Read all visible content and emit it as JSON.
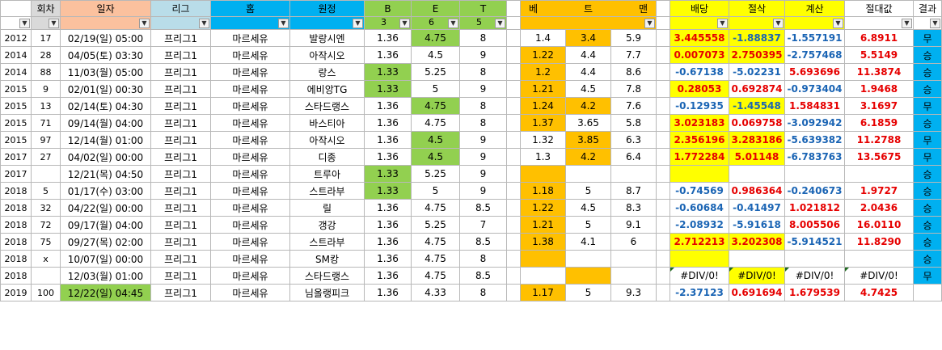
{
  "colors": {
    "orange_header": "#fbc19e",
    "light_blue_header": "#b9dde9",
    "cyan_header": "#00b0f0",
    "green": "#92d050",
    "orange": "#ffc000",
    "yellow": "#ffff00",
    "result_blue": "#00b0f0",
    "result_green": "#92d050",
    "grey_header": "#d9d9d9"
  },
  "header": {
    "c1": "회차",
    "c2": "일자",
    "c3": "리그",
    "c4": "홈",
    "c5": "원정",
    "c6_top": "B",
    "c6_bot": "3",
    "c7_top": "E",
    "c7_bot": "6",
    "c8_top": "T",
    "c8_bot": "5",
    "c10_a": "베",
    "c10_b": "트",
    "c10_c": "맨",
    "c12": "배당",
    "c13": "절삭",
    "c14": "계산",
    "c15": "절대값",
    "c16": "결과",
    "filter_icon": "▼",
    "filter_active_icon": "▼⏷"
  },
  "rows": [
    {
      "yr": "2012",
      "n": "17",
      "date": "02/19(일) 05:00",
      "lg": "프리그1",
      "home": "마르세유",
      "away": "발랑시엔",
      "b": "1.36",
      "e": "4.75",
      "t": "8",
      "m1": "1.4",
      "m2": "3.4",
      "m3": "5.9",
      "v1": "3.445558",
      "v2": "-1.88837",
      "v3": "-1.557191",
      "v4": "6.8911",
      "res": "무"
    },
    {
      "yr": "2014",
      "n": "28",
      "date": "04/05(토) 03:30",
      "lg": "프리그1",
      "home": "마르세유",
      "away": "아작시오",
      "b": "1.36",
      "e": "4.5",
      "t": "9",
      "m1": "1.22",
      "m2": "4.4",
      "m3": "7.7",
      "v1": "0.007073",
      "v2": "2.750395",
      "v3": "-2.757468",
      "v4": "5.5149",
      "res": "승"
    },
    {
      "yr": "2014",
      "n": "88",
      "date": "11/03(월) 05:00",
      "lg": "프리그1",
      "home": "마르세유",
      "away": "랑스",
      "b": "1.33",
      "e": "5.25",
      "t": "8",
      "m1": "1.2",
      "m2": "4.4",
      "m3": "8.6",
      "v1": "-0.67138",
      "v2": "-5.02231",
      "v3": "5.693696",
      "v4": "11.3874",
      "res": "승"
    },
    {
      "yr": "2015",
      "n": "9",
      "date": "02/01(일) 00:30",
      "lg": "프리그1",
      "home": "마르세유",
      "away": "에비앙TG",
      "b": "1.33",
      "e": "5",
      "t": "9",
      "m1": "1.21",
      "m2": "4.5",
      "m3": "7.8",
      "v1": "0.28053",
      "v2": "0.692874",
      "v3": "-0.973404",
      "v4": "1.9468",
      "res": "승"
    },
    {
      "yr": "2015",
      "n": "13",
      "date": "02/14(토) 04:30",
      "lg": "프리그1",
      "home": "마르세유",
      "away": "스타드랭스",
      "b": "1.36",
      "e": "4.75",
      "t": "8",
      "m1": "1.24",
      "m2": "4.2",
      "m3": "7.6",
      "v1": "-0.12935",
      "v2": "-1.45548",
      "v3": "1.584831",
      "v4": "3.1697",
      "res": "무"
    },
    {
      "yr": "2015",
      "n": "71",
      "date": "09/14(월) 04:00",
      "lg": "프리그1",
      "home": "마르세유",
      "away": "바스티아",
      "b": "1.36",
      "e": "4.75",
      "t": "8",
      "m1": "1.37",
      "m2": "3.65",
      "m3": "5.8",
      "v1": "3.023183",
      "v2": "0.069758",
      "v3": "-3.092942",
      "v4": "6.1859",
      "res": "승"
    },
    {
      "yr": "2015",
      "n": "97",
      "date": "12/14(월) 01:00",
      "lg": "프리그1",
      "home": "마르세유",
      "away": "아작시오",
      "b": "1.36",
      "e": "4.5",
      "t": "9",
      "m1": "1.32",
      "m2": "3.85",
      "m3": "6.3",
      "v1": "2.356196",
      "v2": "3.283186",
      "v3": "-5.639382",
      "v4": "11.2788",
      "res": "무"
    },
    {
      "yr": "2017",
      "n": "27",
      "date": "04/02(일) 00:00",
      "lg": "프리그1",
      "home": "마르세유",
      "away": "디종",
      "b": "1.36",
      "e": "4.5",
      "t": "9",
      "m1": "1.3",
      "m2": "4.2",
      "m3": "6.4",
      "v1": "1.772284",
      "v2": "5.01148",
      "v3": "-6.783763",
      "v4": "13.5675",
      "res": "무"
    },
    {
      "yr": "2017",
      "n": "",
      "date": "12/21(목) 04:50",
      "lg": "프리그1",
      "home": "마르세유",
      "away": "트루아",
      "b": "1.33",
      "e": "5.25",
      "t": "9",
      "m1": "",
      "m2": "",
      "m3": "",
      "v1": "",
      "v2": "",
      "v3": "",
      "v4": "",
      "res": "승"
    },
    {
      "yr": "2018",
      "n": "5",
      "date": "01/17(수) 03:00",
      "lg": "프리그1",
      "home": "마르세유",
      "away": "스트라부",
      "b": "1.33",
      "e": "5",
      "t": "9",
      "m1": "1.18",
      "m2": "5",
      "m3": "8.7",
      "v1": "-0.74569",
      "v2": "0.986364",
      "v3": "-0.240673",
      "v4": "1.9727",
      "res": "승"
    },
    {
      "yr": "2018",
      "n": "32",
      "date": "04/22(일) 00:00",
      "lg": "프리그1",
      "home": "마르세유",
      "away": "릴",
      "b": "1.36",
      "e": "4.75",
      "t": "8.5",
      "m1": "1.22",
      "m2": "4.5",
      "m3": "8.3",
      "v1": "-0.60684",
      "v2": "-0.41497",
      "v3": "1.021812",
      "v4": "2.0436",
      "res": "승"
    },
    {
      "yr": "2018",
      "n": "72",
      "date": "09/17(월) 04:00",
      "lg": "프리그1",
      "home": "마르세유",
      "away": "갱강",
      "b": "1.36",
      "e": "5.25",
      "t": "7",
      "m1": "1.21",
      "m2": "5",
      "m3": "9.1",
      "v1": "-2.08932",
      "v2": "-5.91618",
      "v3": "8.005506",
      "v4": "16.0110",
      "res": "승"
    },
    {
      "yr": "2018",
      "n": "75",
      "date": "09/27(목) 02:00",
      "lg": "프리그1",
      "home": "마르세유",
      "away": "스트라부",
      "b": "1.36",
      "e": "4.75",
      "t": "8.5",
      "m1": "1.38",
      "m2": "4.1",
      "m3": "6",
      "v1": "2.712213",
      "v2": "3.202308",
      "v3": "-5.914521",
      "v4": "11.8290",
      "res": "승"
    },
    {
      "yr": "2018",
      "n": "x",
      "date": "10/07(일) 00:00",
      "lg": "프리그1",
      "home": "마르세유",
      "away": "SM캉",
      "b": "1.36",
      "e": "4.75",
      "t": "8",
      "m1": "",
      "m2": "",
      "m3": "",
      "v1": "",
      "v2": "",
      "v3": "",
      "v4": "",
      "res": "승"
    },
    {
      "yr": "2018",
      "n": "",
      "date": "12/03(월) 01:00",
      "lg": "프리그1",
      "home": "마르세유",
      "away": "스타드랭스",
      "b": "1.36",
      "e": "4.75",
      "t": "8.5",
      "m1": "",
      "m2": "",
      "m3": "",
      "v1": "#DIV/0!",
      "v2": "#DIV/0!",
      "v3": "#DIV/0!",
      "v4": "#DIV/0!",
      "res": "무"
    },
    {
      "yr": "2019",
      "n": "100",
      "date": "12/22(일) 04:45",
      "lg": "프리그1",
      "home": "마르세유",
      "away": "님올랭피크",
      "b": "1.36",
      "e": "4.33",
      "t": "8",
      "m1": "1.17",
      "m2": "5",
      "m3": "9.3",
      "v1": "-2.37123",
      "v2": "0.691694",
      "v3": "1.679539",
      "v4": "4.7425",
      "res": ""
    }
  ]
}
